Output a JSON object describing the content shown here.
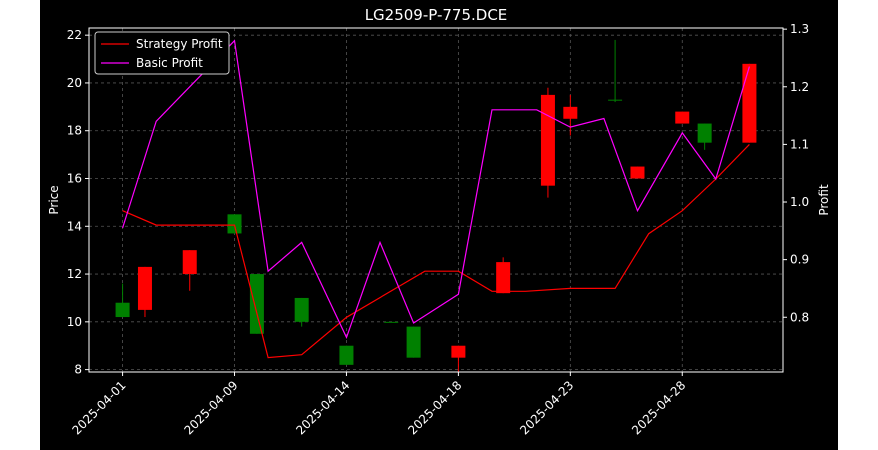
{
  "chart_data": {
    "type": "candlestick+line",
    "title": "LG2509-P-775.DCE",
    "ylabel_left": "Price",
    "ylabel_right": "Profit",
    "xlabel": "",
    "grid": true,
    "grid_style": "dashed",
    "legend_placement": "top-left",
    "ylim_left": [
      7.9,
      22.3
    ],
    "ylim_right": [
      0.705,
      1.302
    ],
    "yticks_left": [
      8,
      10,
      12,
      14,
      16,
      18,
      20,
      22
    ],
    "yticks_right": [
      0.8,
      0.9,
      1.0,
      1.1,
      1.2,
      1.3
    ],
    "xtick_labels": [
      "2025-04-01",
      "2025-04-09",
      "2025-04-14",
      "2025-04-18",
      "2025-04-23",
      "2025-04-28"
    ],
    "xtick_positions": [
      0,
      5,
      10,
      15,
      20,
      25
    ],
    "candles": [
      {
        "i": 0,
        "open": 10.2,
        "close": 10.8,
        "high": 11.6,
        "low": 10.2
      },
      {
        "i": 1,
        "open": 12.3,
        "close": 10.5,
        "high": 12.3,
        "low": 10.2
      },
      {
        "i": 3,
        "open": 13.0,
        "close": 12.0,
        "high": 13.0,
        "low": 11.3
      },
      {
        "i": 5,
        "open": 13.7,
        "close": 14.5,
        "high": 14.5,
        "low": 13.7
      },
      {
        "i": 6,
        "open": 9.5,
        "close": 12.0,
        "high": 12.0,
        "low": 9.5
      },
      {
        "i": 8,
        "open": 10.0,
        "close": 11.0,
        "high": 11.0,
        "low": 9.8
      },
      {
        "i": 10,
        "open": 8.2,
        "close": 9.0,
        "high": 9.0,
        "low": 8.2
      },
      {
        "i": 12,
        "open": 10.0,
        "close": 10.0,
        "high": 10.0,
        "low": 10.0
      },
      {
        "i": 13,
        "open": 8.5,
        "close": 9.8,
        "high": 9.8,
        "low": 8.5
      },
      {
        "i": 15,
        "open": 9.0,
        "close": 8.5,
        "high": 9.0,
        "low": 7.9
      },
      {
        "i": 17,
        "open": 12.5,
        "close": 11.2,
        "high": 12.7,
        "low": 11.2
      },
      {
        "i": 19,
        "open": 19.5,
        "close": 15.7,
        "high": 19.8,
        "low": 15.2
      },
      {
        "i": 20,
        "open": 19.0,
        "close": 18.5,
        "high": 19.5,
        "low": 17.8
      },
      {
        "i": 22,
        "open": 19.3,
        "close": 19.3,
        "high": 21.8,
        "low": 19.2
      },
      {
        "i": 23,
        "open": 16.5,
        "close": 16.0,
        "high": 16.5,
        "low": 16.0
      },
      {
        "i": 25,
        "open": 18.8,
        "close": 18.3,
        "high": 18.8,
        "low": 18.3
      },
      {
        "i": 26,
        "open": 17.5,
        "close": 18.3,
        "high": 18.3,
        "low": 17.2
      },
      {
        "i": 28,
        "open": 20.8,
        "close": 17.5,
        "high": 20.8,
        "low": 17.5
      }
    ],
    "series": [
      {
        "name": "Strategy Profit",
        "color": "#ff0000",
        "points": [
          [
            0,
            0.985
          ],
          [
            1.5,
            0.96
          ],
          [
            5,
            0.96
          ],
          [
            6.5,
            0.73
          ],
          [
            8,
            0.735
          ],
          [
            10,
            0.8
          ],
          [
            13.5,
            0.88
          ],
          [
            15,
            0.88
          ],
          [
            16.5,
            0.845
          ],
          [
            18,
            0.845
          ],
          [
            20,
            0.85
          ],
          [
            22,
            0.85
          ],
          [
            23.5,
            0.945
          ],
          [
            25,
            0.985
          ],
          [
            26.5,
            1.04
          ],
          [
            28,
            1.1
          ]
        ]
      },
      {
        "name": "Basic Profit",
        "color": "#ff00ff",
        "points": [
          [
            0,
            0.955
          ],
          [
            1.5,
            1.14
          ],
          [
            5,
            1.28
          ],
          [
            6.5,
            0.88
          ],
          [
            8,
            0.93
          ],
          [
            10,
            0.765
          ],
          [
            11.5,
            0.93
          ],
          [
            13,
            0.79
          ],
          [
            15,
            0.84
          ],
          [
            16.5,
            1.16
          ],
          [
            18.5,
            1.16
          ],
          [
            20,
            1.13
          ],
          [
            21.5,
            1.145
          ],
          [
            23,
            0.985
          ],
          [
            25,
            1.12
          ],
          [
            26.5,
            1.04
          ],
          [
            28,
            1.235
          ]
        ]
      }
    ],
    "colors": {
      "up": "#008000",
      "down": "#ff0000",
      "background": "#000000",
      "text": "#ffffff"
    }
  }
}
